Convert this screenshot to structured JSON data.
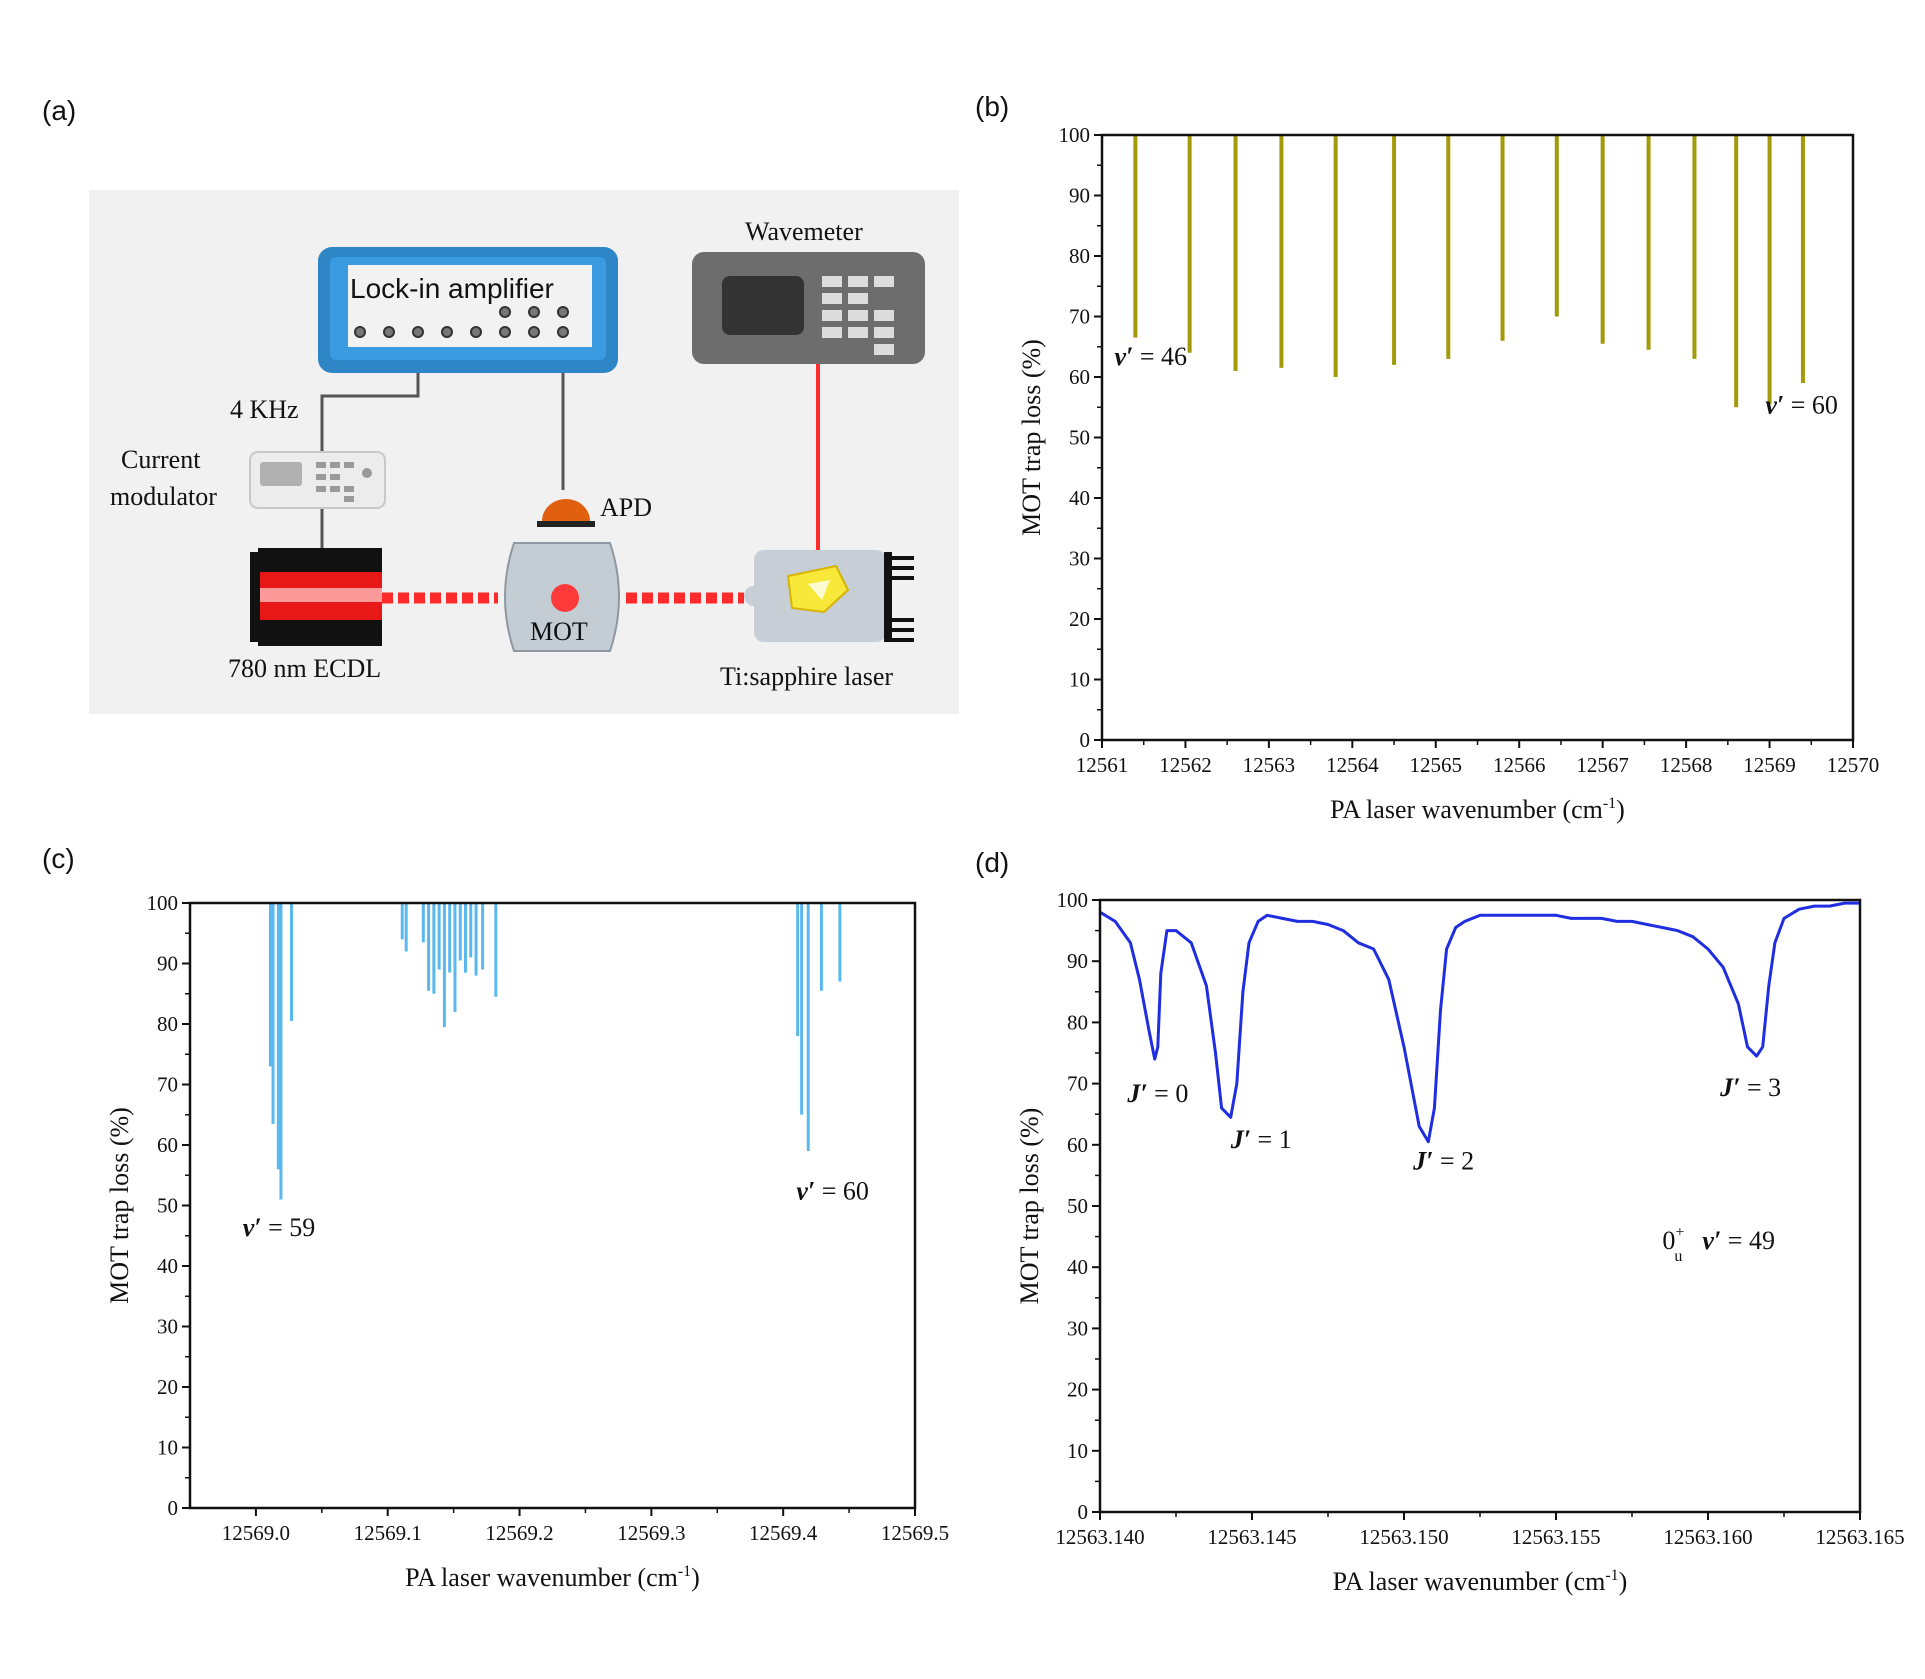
{
  "panel_labels": {
    "a": "(a)",
    "b": "(b)",
    "c": "(c)",
    "d": "(d)"
  },
  "diagram": {
    "lockin_label": "Lock-in amplifier",
    "wavemeter_label": "Wavemeter",
    "freq_label": "4 KHz",
    "modulator_line1": "Current",
    "modulator_line2": "modulator",
    "apd_label": "APD",
    "mot_label": "MOT",
    "ecdl_label": "780 nm ECDL",
    "tisapph_label": "Ti:sapphire laser"
  },
  "colors": {
    "b": "#a39a0a",
    "c": "#5bb8ee",
    "d": "#1f2ee0",
    "laser": "#ff2a2a"
  },
  "chart_data": [
    {
      "id": "b",
      "type": "bar",
      "xlabel": "PA laser wavenumber (cm",
      "xlabel_sup": "-1",
      "xlabel_end": ")",
      "ylabel": "MOT trap loss (%)",
      "xlim": [
        12561,
        12570
      ],
      "ylim": [
        0,
        100
      ],
      "xticks": [
        12561,
        12562,
        12563,
        12564,
        12565,
        12566,
        12567,
        12568,
        12569,
        12570
      ],
      "xtick_labels": [
        "12561",
        "12562",
        "12563",
        "12564",
        "12565",
        "12566",
        "12567",
        "12568",
        "12569",
        "12570"
      ],
      "yticks": [
        0,
        10,
        20,
        30,
        40,
        50,
        60,
        70,
        80,
        90,
        100
      ],
      "ytick_labels": [
        "0",
        "10",
        "20",
        "30",
        "40",
        "50",
        "60",
        "70",
        "80",
        "90",
        "100"
      ],
      "x": [
        12561.4,
        12562.05,
        12562.6,
        12563.15,
        12563.8,
        12564.5,
        12565.15,
        12565.8,
        12566.45,
        12567.0,
        12567.55,
        12568.1,
        12568.6,
        12569.0,
        12569.4
      ],
      "values": [
        66.5,
        64,
        61,
        61.5,
        60,
        62,
        63,
        66,
        70,
        65.5,
        64.5,
        63,
        55,
        55.5,
        59
      ],
      "annotations": [
        {
          "v": "v′",
          "text": " = 46",
          "x": 12561.15,
          "y": 62
        },
        {
          "v": "v′",
          "text": " = 60",
          "x": 12568.95,
          "y": 54
        }
      ]
    },
    {
      "id": "c",
      "type": "bar",
      "xlabel": "PA laser wavenumber (cm",
      "xlabel_sup": "-1",
      "xlabel_end": ")",
      "ylabel": "MOT trap loss (%)",
      "xlim": [
        12568.95,
        12569.5
      ],
      "ylim": [
        0,
        100
      ],
      "xticks": [
        12569.0,
        12569.1,
        12569.2,
        12569.3,
        12569.4,
        12569.5
      ],
      "xtick_labels": [
        "12569.0",
        "12569.1",
        "12569.2",
        "12569.3",
        "12569.4",
        "12569.5"
      ],
      "yticks": [
        0,
        10,
        20,
        30,
        40,
        50,
        60,
        70,
        80,
        90,
        100
      ],
      "ytick_labels": [
        "0",
        "10",
        "20",
        "30",
        "40",
        "50",
        "60",
        "70",
        "80",
        "90",
        "100"
      ],
      "x": [
        12569.011,
        12569.013,
        12569.017,
        12569.019,
        12569.027,
        12569.111,
        12569.114,
        12569.127,
        12569.131,
        12569.135,
        12569.139,
        12569.143,
        12569.147,
        12569.151,
        12569.155,
        12569.159,
        12569.163,
        12569.167,
        12569.172,
        12569.182,
        12569.411,
        12569.414,
        12569.419,
        12569.429,
        12569.443
      ],
      "values": [
        73,
        63.5,
        56,
        51,
        80.5,
        94,
        92,
        93.5,
        85.5,
        85,
        89,
        79.5,
        88.5,
        82,
        90.5,
        88.5,
        91,
        88,
        89,
        84.5,
        78,
        65,
        59,
        85.5,
        87
      ],
      "annotations": [
        {
          "v": "v′",
          "text": " = 59",
          "x": 12568.99,
          "y": 45
        },
        {
          "v": "v′",
          "text": " = 60",
          "x": 12569.41,
          "y": 51
        }
      ]
    },
    {
      "id": "d",
      "type": "line",
      "xlabel": "PA laser wavenumber (cm",
      "xlabel_sup": "-1",
      "xlabel_end": ")",
      "ylabel": "MOT trap loss (%)",
      "xlim": [
        12563.14,
        12563.165
      ],
      "ylim": [
        0,
        100
      ],
      "xticks": [
        12563.14,
        12563.145,
        12563.15,
        12563.155,
        12563.16,
        12563.165
      ],
      "xtick_labels": [
        "12563.140",
        "12563.145",
        "12563.150",
        "12563.155",
        "12563.160",
        "12563.165"
      ],
      "yticks": [
        0,
        10,
        20,
        30,
        40,
        50,
        60,
        70,
        80,
        90,
        100
      ],
      "ytick_labels": [
        "0",
        "10",
        "20",
        "30",
        "40",
        "50",
        "60",
        "70",
        "80",
        "90",
        "100"
      ],
      "x": [
        12563.14,
        12563.1405,
        12563.141,
        12563.1413,
        12563.1416,
        12563.1418,
        12563.1419,
        12563.142,
        12563.1422,
        12563.1425,
        12563.143,
        12563.1435,
        12563.1438,
        12563.144,
        12563.1443,
        12563.1445,
        12563.1447,
        12563.1449,
        12563.1452,
        12563.1455,
        12563.146,
        12563.1465,
        12563.147,
        12563.1475,
        12563.148,
        12563.1485,
        12563.149,
        12563.1495,
        12563.15,
        12563.1505,
        12563.1508,
        12563.151,
        12563.1512,
        12563.1514,
        12563.1517,
        12563.152,
        12563.1525,
        12563.153,
        12563.1535,
        12563.154,
        12563.1545,
        12563.155,
        12563.1555,
        12563.156,
        12563.1565,
        12563.157,
        12563.1575,
        12563.158,
        12563.1585,
        12563.159,
        12563.1595,
        12563.16,
        12563.1605,
        12563.161,
        12563.1613,
        12563.1616,
        12563.1618,
        12563.162,
        12563.1622,
        12563.1625,
        12563.163,
        12563.1635,
        12563.164,
        12563.1645,
        12563.165
      ],
      "values": [
        98,
        96.5,
        93,
        87,
        79,
        74,
        76,
        88,
        95,
        95,
        93,
        86,
        75,
        66,
        64.5,
        70,
        85,
        93,
        96.5,
        97.5,
        97,
        96.5,
        96.5,
        96,
        95,
        93,
        92,
        87,
        76,
        63,
        60.5,
        66,
        82,
        92,
        95.5,
        96.5,
        97.5,
        97.5,
        97.5,
        97.5,
        97.5,
        97.5,
        97,
        97,
        97,
        96.5,
        96.5,
        96,
        95.5,
        95,
        94,
        92,
        89,
        83,
        76,
        74.5,
        76,
        86,
        93,
        97,
        98.5,
        99,
        99,
        99.5,
        99.5
      ],
      "annotations": [
        {
          "v": "J′",
          "text": " = 0",
          "x": 12563.1409,
          "y": 67
        },
        {
          "v": "J′",
          "text": " = 1",
          "x": 12563.1443,
          "y": 59.5
        },
        {
          "v": "J′",
          "text": " = 2",
          "x": 12563.1503,
          "y": 56
        },
        {
          "v": "J′",
          "text": " = 3",
          "x": 12563.1604,
          "y": 68
        }
      ],
      "state_label": {
        "base": "0",
        "sup": "+",
        "sub": "u",
        "v": "v′",
        "text": " = 49",
        "x": 12563.1585,
        "y": 43
      }
    }
  ]
}
